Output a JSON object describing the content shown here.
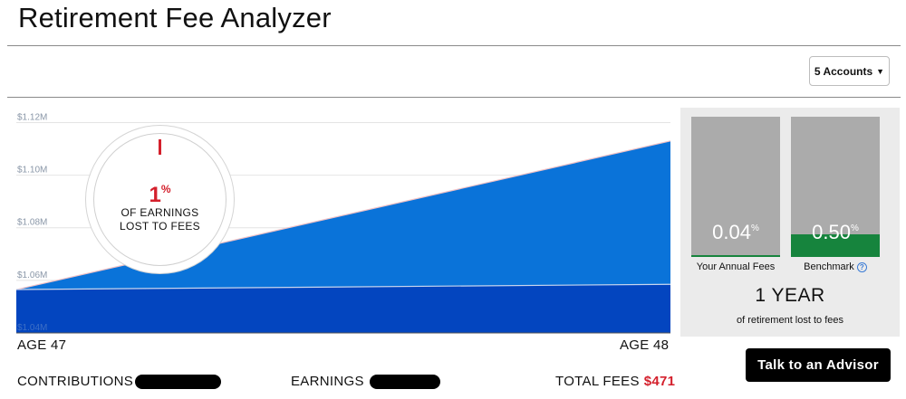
{
  "page": {
    "title": "Retirement Fee Analyzer"
  },
  "accounts_selector": {
    "label": "5 Accounts",
    "icon": "caret-down-icon"
  },
  "chart_data": {
    "type": "area",
    "x_start_label": "AGE 47",
    "x_end_label": "AGE 48",
    "ytick_labels": [
      "$1.12M",
      "$1.10M",
      "$1.08M",
      "$1.06M",
      "$1.04M"
    ],
    "yticks": [
      1.12,
      1.1,
      1.08,
      1.06,
      1.04
    ],
    "ylim": [
      1.04,
      1.126
    ],
    "x": [
      0,
      1
    ],
    "series": [
      {
        "name": "",
        "color": "#0345bf",
        "values": [
          1.0565,
          1.0585
        ]
      },
      {
        "name": "",
        "color": "#0a73d9",
        "values": [
          1.0565,
          1.113
        ]
      }
    ],
    "grid": true
  },
  "fee_callout": {
    "value": "1",
    "unit": "%",
    "label_line1": "OF EARNINGS",
    "label_line2": "LOST TO FEES",
    "fraction": 0.01
  },
  "summary": {
    "contributions_label": "CONTRIBUTIONS",
    "earnings_label": "EARNINGS",
    "total_fees_label": "TOTAL FEES",
    "total_fees_value": "$471"
  },
  "fee_comparison": {
    "your_fees": {
      "value": "0.04",
      "unit": "%",
      "caption": "Your Annual Fees",
      "fill_fraction": 0.01
    },
    "benchmark": {
      "value": "0.50",
      "unit": "%",
      "caption": "Benchmark",
      "fill_fraction": 0.16
    },
    "years_lost": "1 YEAR",
    "years_lost_caption": "of retirement lost to fees"
  },
  "advisor_button": {
    "label": "Talk to an Advisor"
  },
  "colors": {
    "accent_red": "#d4202c",
    "green": "#16843d",
    "dark_blue": "#0345bf",
    "light_blue": "#0a73d9"
  }
}
